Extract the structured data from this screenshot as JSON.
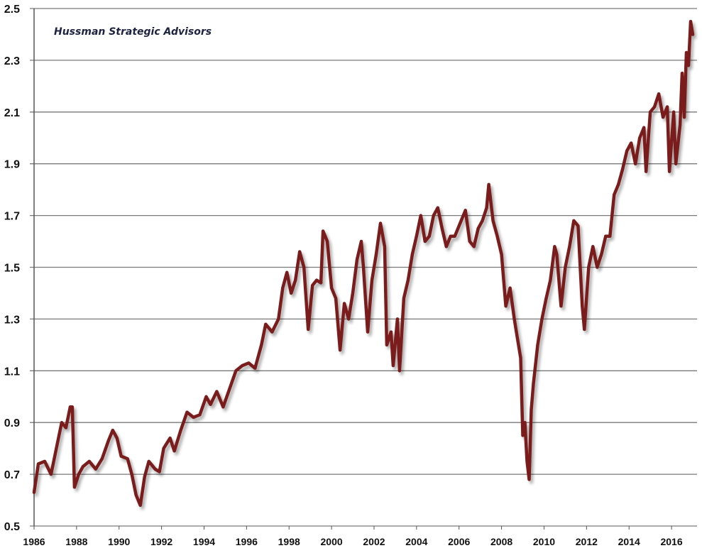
{
  "chart_data": {
    "type": "line",
    "title": "Hussman Strategic Advisors",
    "xlabel": "",
    "ylabel": "",
    "xlim": [
      1986,
      2017.2
    ],
    "ylim": [
      0.5,
      2.5
    ],
    "grid": true,
    "y_ticks": [
      "0.5",
      "0.7",
      "0.9",
      "1.1",
      "1.3",
      "1.5",
      "1.7",
      "1.9",
      "2.1",
      "2.3",
      "2.5"
    ],
    "x_ticks": [
      "1986",
      "1988",
      "1990",
      "1992",
      "1994",
      "1996",
      "1998",
      "2000",
      "2002",
      "2004",
      "2006",
      "2008",
      "2010",
      "2012",
      "2014",
      "2016"
    ],
    "line_color": "#7a1f1c",
    "series": [
      {
        "name": "series",
        "x": [
          1986.0,
          1986.2,
          1986.5,
          1986.8,
          1987.0,
          1987.3,
          1987.5,
          1987.7,
          1987.8,
          1987.9,
          1988.1,
          1988.3,
          1988.6,
          1988.9,
          1989.2,
          1989.5,
          1989.7,
          1989.9,
          1990.1,
          1990.4,
          1990.6,
          1990.8,
          1991.0,
          1991.2,
          1991.4,
          1991.7,
          1991.9,
          1992.1,
          1992.4,
          1992.6,
          1992.9,
          1993.2,
          1993.5,
          1993.8,
          1994.1,
          1994.3,
          1994.6,
          1994.9,
          1995.2,
          1995.5,
          1995.8,
          1996.1,
          1996.4,
          1996.7,
          1996.9,
          1997.2,
          1997.5,
          1997.7,
          1997.9,
          1998.1,
          1998.3,
          1998.5,
          1998.7,
          1998.9,
          1999.1,
          1999.3,
          1999.5,
          1999.6,
          1999.8,
          2000.0,
          2000.2,
          2000.4,
          2000.6,
          2000.8,
          2001.0,
          2001.2,
          2001.4,
          2001.5,
          2001.7,
          2001.9,
          2002.1,
          2002.3,
          2002.5,
          2002.6,
          2002.8,
          2002.9,
          2003.1,
          2003.2,
          2003.4,
          2003.6,
          2003.8,
          2004.0,
          2004.2,
          2004.4,
          2004.6,
          2004.8,
          2005.0,
          2005.2,
          2005.4,
          2005.6,
          2005.8,
          2006.1,
          2006.3,
          2006.5,
          2006.7,
          2006.9,
          2007.1,
          2007.3,
          2007.4,
          2007.6,
          2007.8,
          2008.0,
          2008.2,
          2008.4,
          2008.6,
          2008.7,
          2008.9,
          2009.0,
          2009.1,
          2009.2,
          2009.3,
          2009.4,
          2009.5,
          2009.7,
          2009.9,
          2010.1,
          2010.3,
          2010.5,
          2010.6,
          2010.8,
          2011.0,
          2011.2,
          2011.4,
          2011.6,
          2011.8,
          2011.9,
          2012.1,
          2012.3,
          2012.5,
          2012.7,
          2012.9,
          2013.1,
          2013.3,
          2013.5,
          2013.7,
          2013.9,
          2014.1,
          2014.3,
          2014.5,
          2014.7,
          2014.8,
          2015.0,
          2015.2,
          2015.4,
          2015.6,
          2015.8,
          2015.9,
          2016.1,
          2016.2,
          2016.4,
          2016.5,
          2016.6,
          2016.7,
          2016.8,
          2016.9,
          2017.0
        ],
        "y": [
          0.63,
          0.74,
          0.75,
          0.7,
          0.78,
          0.9,
          0.88,
          0.96,
          0.96,
          0.65,
          0.7,
          0.73,
          0.75,
          0.72,
          0.76,
          0.83,
          0.87,
          0.84,
          0.77,
          0.76,
          0.7,
          0.62,
          0.58,
          0.69,
          0.75,
          0.72,
          0.71,
          0.8,
          0.84,
          0.79,
          0.87,
          0.94,
          0.92,
          0.93,
          1.0,
          0.97,
          1.02,
          0.96,
          1.03,
          1.1,
          1.12,
          1.13,
          1.11,
          1.2,
          1.28,
          1.25,
          1.3,
          1.42,
          1.48,
          1.4,
          1.45,
          1.56,
          1.5,
          1.26,
          1.43,
          1.45,
          1.44,
          1.64,
          1.6,
          1.42,
          1.38,
          1.18,
          1.36,
          1.3,
          1.4,
          1.53,
          1.6,
          1.5,
          1.25,
          1.45,
          1.55,
          1.67,
          1.58,
          1.2,
          1.25,
          1.12,
          1.3,
          1.1,
          1.38,
          1.45,
          1.55,
          1.62,
          1.7,
          1.6,
          1.62,
          1.7,
          1.73,
          1.65,
          1.58,
          1.62,
          1.62,
          1.68,
          1.72,
          1.6,
          1.58,
          1.65,
          1.68,
          1.73,
          1.82,
          1.68,
          1.62,
          1.55,
          1.35,
          1.42,
          1.3,
          1.25,
          1.15,
          0.85,
          0.9,
          0.75,
          0.68,
          0.95,
          1.05,
          1.2,
          1.3,
          1.38,
          1.45,
          1.58,
          1.55,
          1.35,
          1.5,
          1.58,
          1.68,
          1.66,
          1.35,
          1.26,
          1.5,
          1.58,
          1.5,
          1.55,
          1.62,
          1.62,
          1.78,
          1.82,
          1.88,
          1.95,
          1.98,
          1.9,
          2.0,
          2.04,
          1.87,
          2.1,
          2.12,
          2.17,
          2.08,
          2.12,
          1.87,
          2.1,
          1.9,
          2.05,
          2.25,
          2.08,
          2.33,
          2.28,
          2.45,
          2.4
        ]
      }
    ]
  }
}
